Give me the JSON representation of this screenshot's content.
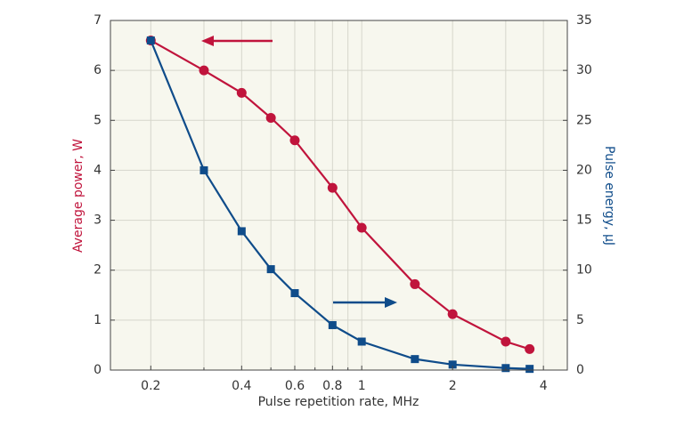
{
  "chart_data": {
    "type": "line",
    "xlabel": "Pulse repetition rate, MHz",
    "ylabel": "Average power, W",
    "y2label": "Pulse energy, µJ",
    "xscale": "log",
    "xlim": [
      0.147,
      4.8
    ],
    "xticks": [
      0.2,
      0.4,
      0.6,
      0.8,
      1,
      2,
      4
    ],
    "xgrid_minor": [
      0.3,
      0.5,
      0.7,
      0.9,
      3
    ],
    "ylim": [
      0,
      7
    ],
    "yticks": [
      0,
      1,
      2,
      3,
      4,
      5,
      6,
      7
    ],
    "y2lim": [
      0,
      35
    ],
    "y2ticks": [
      0,
      5,
      10,
      15,
      20,
      25,
      30,
      35
    ],
    "grid": true,
    "series": [
      {
        "name": "Average power",
        "color": "#c0143c",
        "marker": "circle",
        "x": [
          0.2,
          0.3,
          0.4,
          0.5,
          0.6,
          0.8,
          1,
          1.5,
          2,
          3,
          3.6
        ],
        "values": [
          6.6,
          6.0,
          5.55,
          5.05,
          4.6,
          3.65,
          2.85,
          1.72,
          1.12,
          0.57,
          0.42
        ]
      },
      {
        "name": "Pulse energy",
        "color": "#0f4c8a",
        "marker": "square",
        "axis": "y2",
        "x": [
          0.2,
          0.3,
          0.4,
          0.5,
          0.6,
          0.8,
          1,
          1.5,
          2,
          3,
          3.6
        ],
        "values": [
          33,
          20,
          13.9,
          10.1,
          7.7,
          4.5,
          2.85,
          1.1,
          0.55,
          0.2,
          0.12
        ]
      }
    ]
  }
}
